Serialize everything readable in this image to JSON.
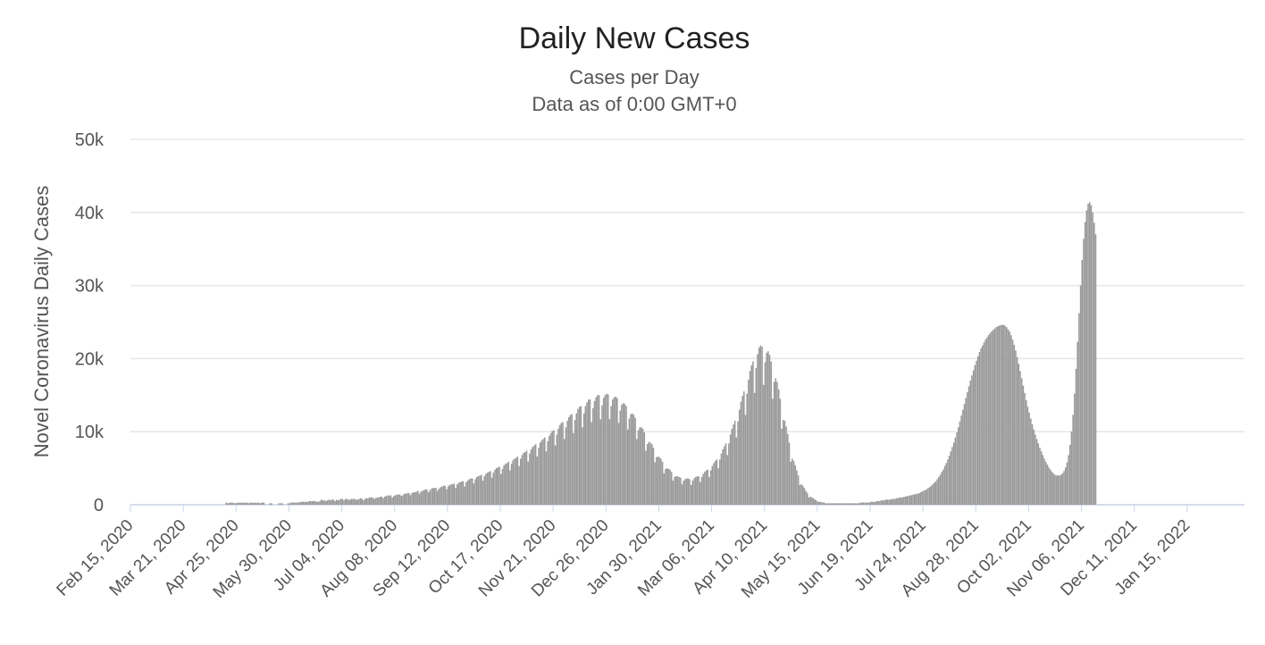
{
  "chart_data": {
    "type": "bar",
    "title": "Daily New Cases",
    "subtitle": "Cases per Day",
    "subtitle2": "Data as of 0:00 GMT+0",
    "ylabel": "Novel Coronavirus Daily Cases",
    "xlabel": "",
    "ylim": [
      0,
      50000
    ],
    "yticks": [
      0,
      10000,
      20000,
      30000,
      40000,
      50000
    ],
    "ytick_labels": [
      "0",
      "10k",
      "20k",
      "30k",
      "40k",
      "50k"
    ],
    "xtick_labels": [
      "Feb 15, 2020",
      "Mar 21, 2020",
      "Apr 25, 2020",
      "May 30, 2020",
      "Jul 04, 2020",
      "Aug 08, 2020",
      "Sep 12, 2020",
      "Oct 17, 2020",
      "Nov 21, 2020",
      "Dec 26, 2020",
      "Jan 30, 2021",
      "Mar 06, 2021",
      "Apr 10, 2021",
      "May 15, 2021",
      "Jun 19, 2021",
      "Jul 24, 2021",
      "Aug 28, 2021",
      "Oct 02, 2021",
      "Nov 06, 2021",
      "Dec 11, 2021",
      "Jan 15, 2022"
    ],
    "first_date": "Feb 15, 2020",
    "num_days": 738,
    "bar_color": "#999999",
    "grid": true,
    "legend": "none",
    "series": [
      {
        "values": [
          0,
          0,
          0,
          0,
          0,
          0,
          0,
          0,
          0,
          0,
          0,
          0,
          0,
          0,
          0,
          0,
          0,
          0,
          0,
          0,
          0,
          0,
          0,
          0,
          0,
          0,
          0,
          0,
          0,
          0,
          0,
          0,
          0,
          0,
          0,
          0,
          0,
          0,
          0,
          0,
          0,
          0,
          0,
          0,
          0,
          0,
          0,
          0,
          0,
          0,
          0,
          0,
          0,
          0,
          0,
          0,
          0,
          0,
          0,
          0,
          0,
          0,
          0,
          300,
          200,
          250,
          300,
          300,
          250,
          200,
          250,
          300,
          250,
          300,
          280,
          300,
          250,
          300,
          200,
          300,
          300,
          250,
          300,
          250,
          300,
          200,
          250,
          300,
          300,
          0,
          0,
          0,
          200,
          200,
          0,
          0,
          0,
          0,
          200,
          200,
          200,
          0,
          0,
          0,
          200,
          200,
          300,
          300,
          300,
          300,
          300,
          300,
          400,
          400,
          400,
          400,
          400,
          400,
          500,
          500,
          500,
          500,
          500,
          400,
          400,
          500,
          700,
          600,
          600,
          500,
          600,
          700,
          600,
          700,
          700,
          500,
          700,
          600,
          700,
          800,
          800,
          600,
          800,
          800,
          700,
          700,
          800,
          800,
          800,
          700,
          700,
          800,
          900,
          800,
          600,
          800,
          900,
          900,
          1000,
          1000,
          1000,
          800,
          900,
          1000,
          1000,
          1100,
          1100,
          900,
          1100,
          1200,
          1300,
          1200,
          1300,
          1000,
          1200,
          1300,
          1400,
          1400,
          1400,
          1200,
          1300,
          1500,
          1500,
          1600,
          1600,
          1300,
          1600,
          1700,
          1700,
          1800,
          1900,
          1500,
          1800,
          1900,
          2000,
          2100,
          2100,
          1700,
          2000,
          2200,
          2300,
          2300,
          2300,
          1900,
          2200,
          2400,
          2500,
          2600,
          2600,
          2100,
          2500,
          2700,
          2800,
          2800,
          2900,
          2300,
          2800,
          3000,
          3100,
          3200,
          3200,
          2500,
          3100,
          3300,
          3500,
          3600,
          3600,
          2900,
          3500,
          3800,
          3900,
          4000,
          4100,
          3300,
          3900,
          4200,
          4400,
          4500,
          4600,
          3700,
          4400,
          4800,
          5000,
          5100,
          5200,
          4200,
          4900,
          5400,
          5600,
          5700,
          5900,
          4700,
          5600,
          6100,
          6300,
          6400,
          6600,
          5300,
          6300,
          6800,
          7100,
          7200,
          7400,
          5900,
          7000,
          7600,
          7900,
          8100,
          8300,
          6600,
          7800,
          8500,
          8800,
          9000,
          9200,
          7300,
          8700,
          9400,
          9800,
          10100,
          10200,
          8100,
          9600,
          10400,
          10900,
          11200,
          11300,
          9000,
          10600,
          11500,
          12000,
          12300,
          12400,
          9800,
          11600,
          12500,
          13100,
          13400,
          13500,
          10600,
          12500,
          13500,
          14000,
          14400,
          14400,
          11300,
          13200,
          14200,
          14700,
          15000,
          15000,
          11700,
          13600,
          14600,
          15000,
          15200,
          15100,
          11700,
          13500,
          14400,
          14700,
          14800,
          14600,
          11200,
          12900,
          13700,
          13900,
          13800,
          13500,
          10300,
          11800,
          12400,
          12500,
          12300,
          11900,
          9000,
          10200,
          10600,
          10600,
          10400,
          9900,
          7400,
          8300,
          8600,
          8500,
          8300,
          7800,
          5800,
          6500,
          6600,
          6500,
          6300,
          5900,
          4300,
          4900,
          5000,
          4900,
          4800,
          4500,
          3300,
          3800,
          3900,
          3900,
          3800,
          3700,
          2800,
          3300,
          3500,
          3600,
          3600,
          3500,
          2700,
          3300,
          3600,
          3800,
          3900,
          3900,
          3100,
          3800,
          4200,
          4500,
          4700,
          4800,
          3800,
          4700,
          5300,
          5700,
          6000,
          6200,
          5000,
          6200,
          7000,
          7600,
          8000,
          8400,
          6800,
          8400,
          9600,
          10400,
          11000,
          11500,
          9200,
          11400,
          13000,
          14100,
          14900,
          15500,
          12300,
          15200,
          17100,
          18300,
          19100,
          19600,
          15300,
          18700,
          20600,
          21500,
          21800,
          21600,
          16400,
          19500,
          20800,
          21000,
          20500,
          19600,
          14500,
          16800,
          17300,
          16800,
          15800,
          14500,
          10400,
          11600,
          11500,
          10700,
          9700,
          8500,
          5900,
          6300,
          6000,
          5400,
          4700,
          4000,
          2700,
          2800,
          2600,
          2300,
          1900,
          1600,
          1000,
          1100,
          1000,
          900,
          700,
          600,
          400,
          400,
          400,
          300,
          300,
          200,
          200,
          200,
          200,
          200,
          200,
          200,
          200,
          200,
          200,
          200,
          200,
          200,
          200,
          200,
          200,
          200,
          200,
          200,
          200,
          200,
          200,
          200,
          300,
          300,
          300,
          300,
          300,
          300,
          300,
          400,
          400,
          400,
          400,
          500,
          500,
          500,
          600,
          600,
          600,
          700,
          700,
          700,
          700,
          800,
          800,
          800,
          900,
          900,
          1000,
          1000,
          1000,
          1100,
          1100,
          1200,
          1200,
          1300,
          1300,
          1400,
          1400,
          1500,
          1500,
          1600,
          1700,
          1800,
          1900,
          2000,
          2100,
          2300,
          2400,
          2600,
          2800,
          3000,
          3200,
          3500,
          3800,
          4100,
          4500,
          4800,
          5300,
          5700,
          6200,
          6700,
          7300,
          7900,
          8500,
          9200,
          9900,
          10600,
          11400,
          12200,
          13000,
          13800,
          14600,
          15400,
          16200,
          17000,
          17700,
          18400,
          19100,
          19700,
          20300,
          20900,
          21400,
          21800,
          22200,
          22600,
          22900,
          23200,
          23500,
          23700,
          23900,
          24100,
          24300,
          24400,
          24500,
          24600,
          24600,
          24600,
          24500,
          24300,
          24000,
          23700,
          23200,
          22600,
          21900,
          21100,
          20200,
          19300,
          18300,
          17300,
          16300,
          15300,
          14300,
          13400,
          12600,
          11800,
          11000,
          10300,
          9600,
          9000,
          8400,
          7800,
          7300,
          6800,
          6300,
          5900,
          5500,
          5100,
          4800,
          4500,
          4300,
          4100,
          4000,
          4000,
          4000,
          4100,
          4300,
          4600,
          5100,
          5800,
          6800,
          8200,
          10000,
          12300,
          15200,
          18600,
          22300,
          26200,
          30000,
          33500,
          36400,
          38700,
          40300,
          41200,
          41400,
          41000,
          40000,
          38600,
          37000
        ]
      }
    ]
  }
}
